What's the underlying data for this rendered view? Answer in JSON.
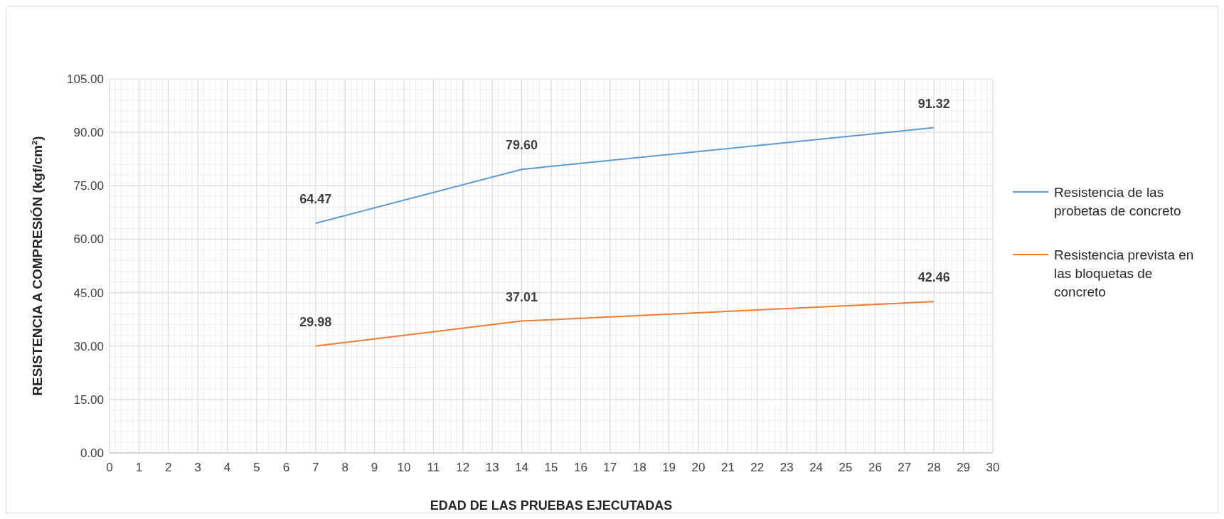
{
  "chart_data": {
    "type": "line",
    "xlabel": "EDAD DE LAS PRUEBAS EJECUTADAS",
    "ylabel": "RESISTENCIA A COMPRESIÓN (kgf/cm²)",
    "x": [
      7,
      14,
      28
    ],
    "series": [
      {
        "name": "Resistencia de las probetas de concreto",
        "color": "#5b9bd5",
        "values": [
          64.47,
          79.6,
          91.32
        ],
        "value_labels": [
          "64.47",
          "79.60",
          "91.32"
        ]
      },
      {
        "name": "Resistencia prevista en las bloquetas de concreto",
        "color": "#ed7d31",
        "values": [
          29.98,
          37.01,
          42.46
        ],
        "value_labels": [
          "29.98",
          "37.01",
          "42.46"
        ]
      }
    ],
    "xlim": [
      0,
      30
    ],
    "xticks": [
      0,
      1,
      2,
      3,
      4,
      5,
      6,
      7,
      8,
      9,
      10,
      11,
      12,
      13,
      14,
      15,
      16,
      17,
      18,
      19,
      20,
      21,
      22,
      23,
      24,
      25,
      26,
      27,
      28,
      29,
      30
    ],
    "ylim": [
      0,
      105
    ],
    "yticks": [
      {
        "value": 0,
        "label": "0.00"
      },
      {
        "value": 15,
        "label": "15.00"
      },
      {
        "value": 30,
        "label": "30.00"
      },
      {
        "value": 45,
        "label": "45.00"
      },
      {
        "value": 60,
        "label": "60.00"
      },
      {
        "value": 75,
        "label": "75.00"
      },
      {
        "value": 90,
        "label": "90.00"
      },
      {
        "value": 105,
        "label": "105.00"
      }
    ],
    "grid": true,
    "legend": "right",
    "marker": "none",
    "line_style": "solid"
  }
}
